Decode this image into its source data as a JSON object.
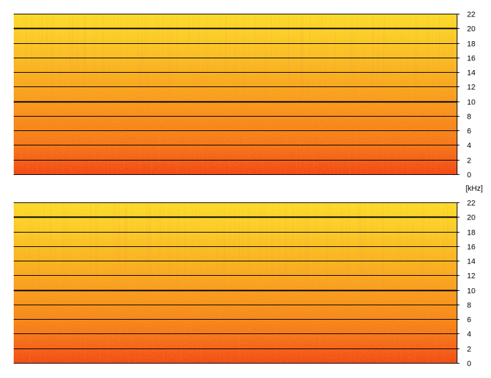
{
  "chart_data": [
    {
      "type": "heatmap",
      "name": "spectrogram-top",
      "title": "",
      "xlabel": "",
      "ylabel": "",
      "y_unit": "[kHz]",
      "ylim": [
        0,
        22
      ],
      "yticks": [
        0,
        2,
        4,
        6,
        8,
        10,
        12,
        14,
        16,
        18,
        20,
        22
      ],
      "ytick_labels": [
        "0",
        "2",
        "4",
        "6",
        "8",
        "10",
        "12",
        "14",
        "16",
        "18",
        "20",
        "22"
      ],
      "bold_gridlines": [
        10,
        20
      ],
      "grid": true,
      "axis_side": "right",
      "colormap": {
        "low": "#f03810",
        "mid": "#f89818",
        "high": "#fce028"
      },
      "intensity_profile": {
        "y_khz": [
          0,
          2,
          4,
          6,
          8,
          10,
          12,
          14,
          16,
          18,
          20,
          22
        ],
        "level": [
          0.05,
          0.18,
          0.3,
          0.38,
          0.44,
          0.5,
          0.58,
          0.66,
          0.74,
          0.82,
          0.9,
          0.96
        ]
      }
    },
    {
      "type": "heatmap",
      "name": "spectrogram-bottom",
      "title": "",
      "xlabel": "",
      "ylabel": "",
      "y_unit": "",
      "ylim": [
        0,
        22
      ],
      "yticks": [
        0,
        2,
        4,
        6,
        8,
        10,
        12,
        14,
        16,
        18,
        20,
        22
      ],
      "ytick_labels": [
        "0",
        "2",
        "4",
        "6",
        "8",
        "10",
        "12",
        "14",
        "16",
        "18",
        "20",
        "22"
      ],
      "bold_gridlines": [
        10,
        20
      ],
      "grid": true,
      "axis_side": "right",
      "colormap": {
        "low": "#f03810",
        "mid": "#f89818",
        "high": "#fce028"
      },
      "intensity_profile": {
        "y_khz": [
          0,
          2,
          4,
          6,
          8,
          10,
          12,
          14,
          16,
          18,
          20,
          22
        ],
        "level": [
          0.08,
          0.2,
          0.32,
          0.4,
          0.46,
          0.52,
          0.6,
          0.68,
          0.76,
          0.84,
          0.91,
          0.96
        ]
      }
    }
  ]
}
